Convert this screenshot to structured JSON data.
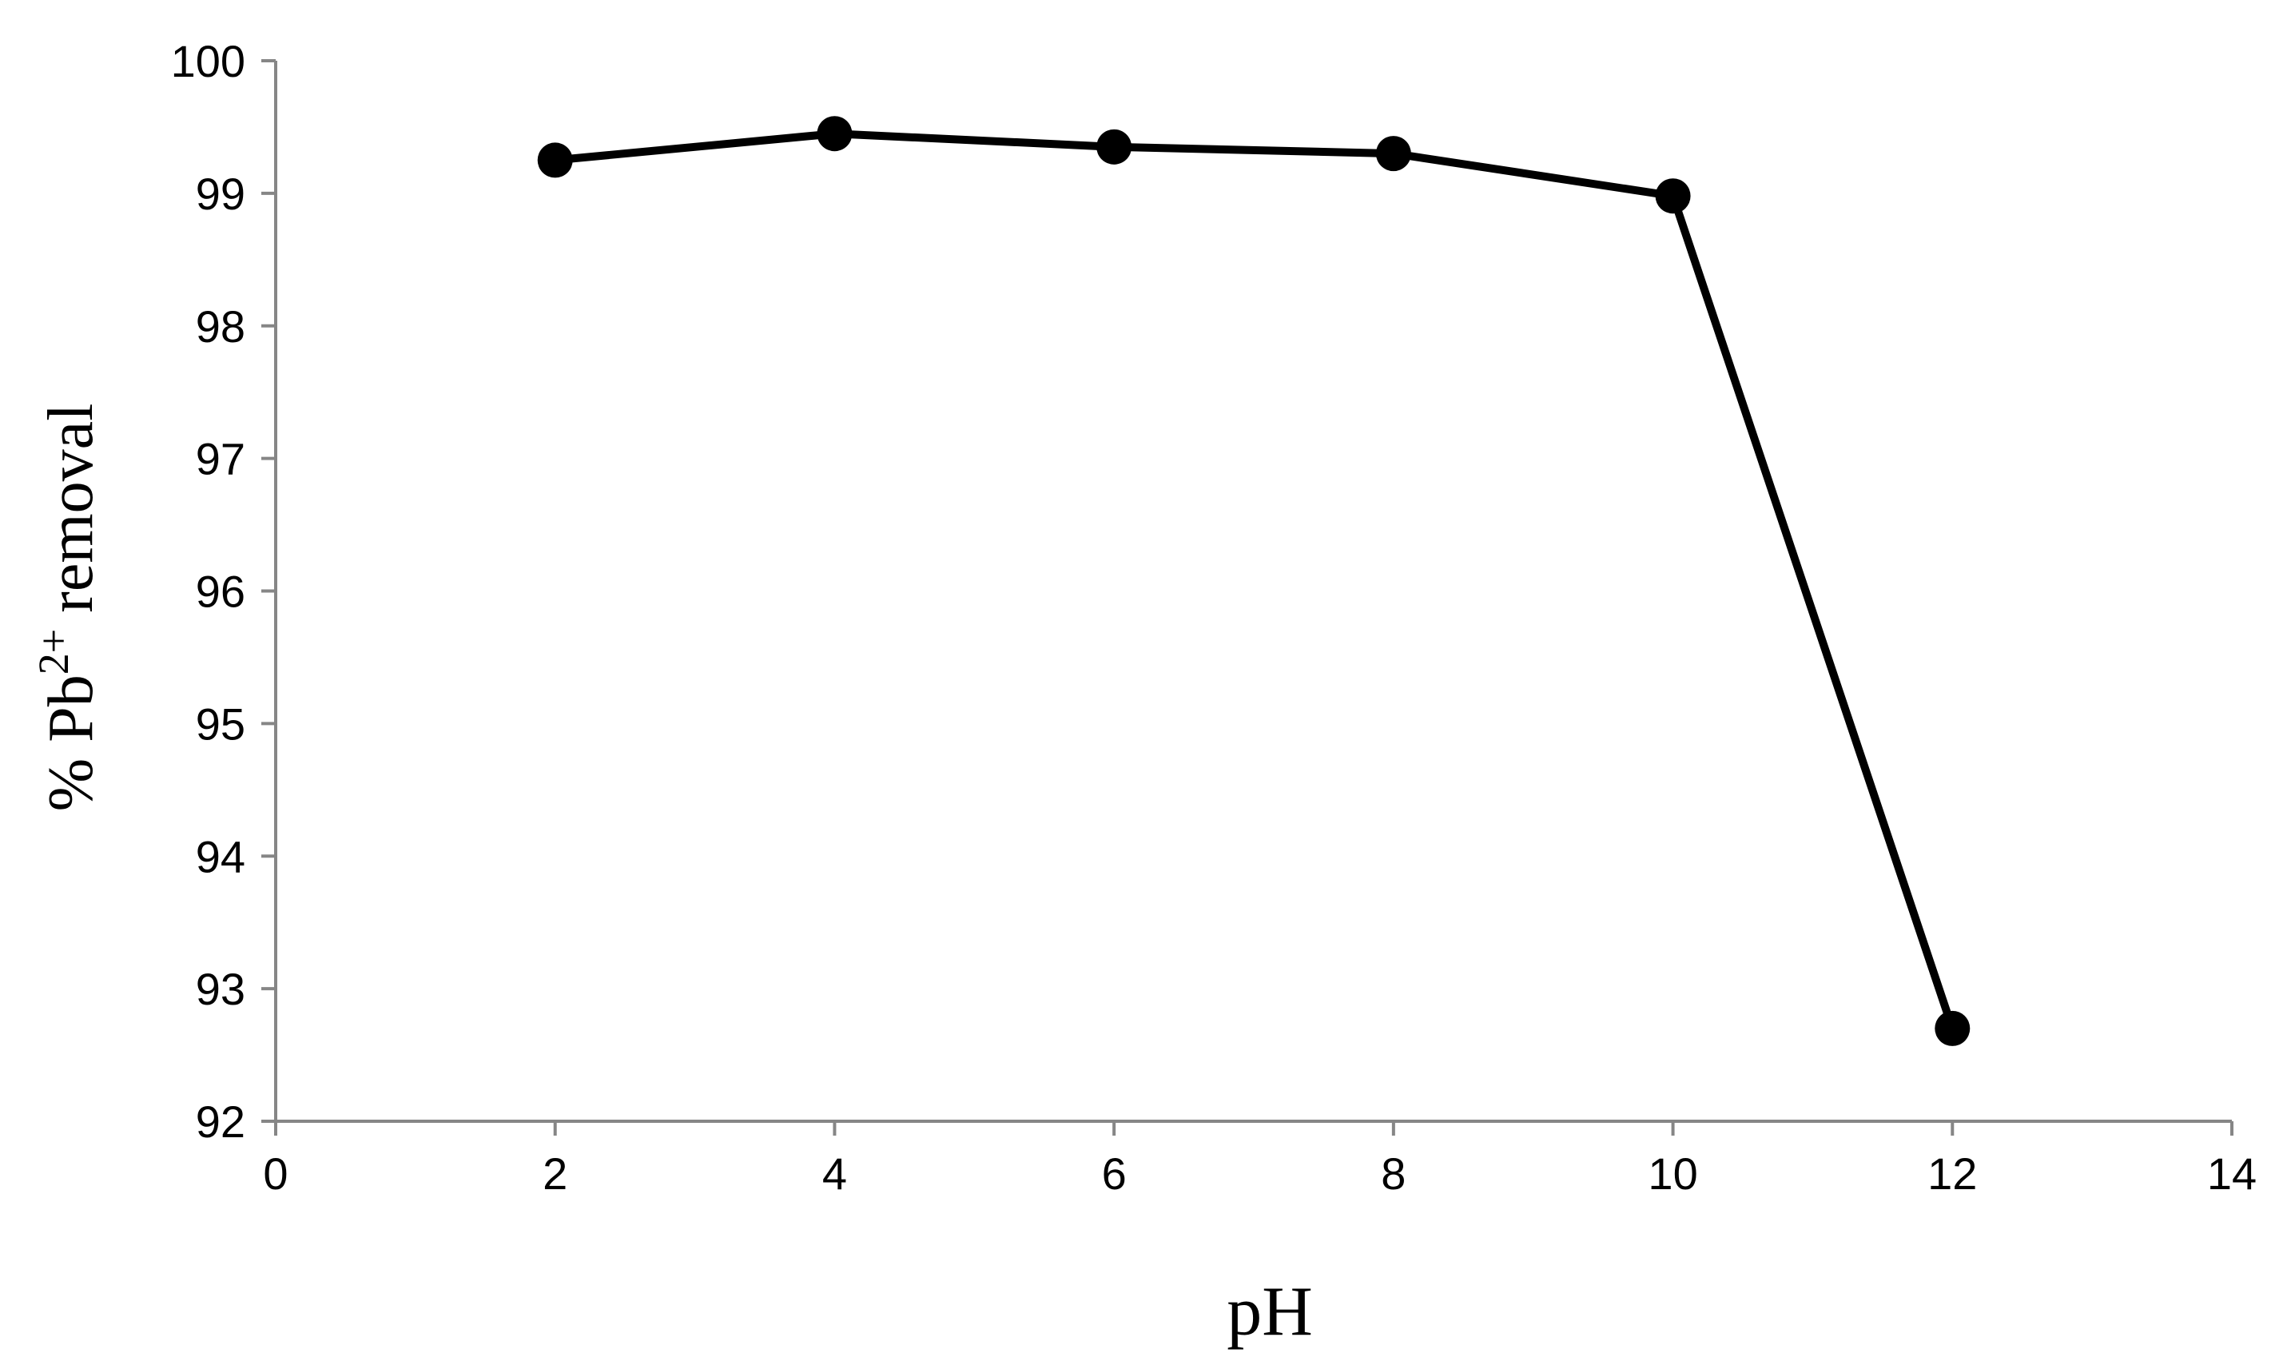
{
  "chart_data": {
    "type": "line",
    "title": "",
    "xlabel": "pH",
    "ylabel": {
      "prefix": "% Pb",
      "superscript": "2+",
      "suffix": " removal"
    },
    "xlim": [
      0,
      14
    ],
    "ylim": [
      92,
      100
    ],
    "xticks": [
      0,
      2,
      4,
      6,
      8,
      10,
      12,
      14
    ],
    "yticks": [
      92,
      93,
      94,
      95,
      96,
      97,
      98,
      99,
      100
    ],
    "grid": false,
    "legend": "none",
    "series": [
      {
        "x": [
          2,
          4,
          6,
          8,
          10,
          12
        ],
        "y": [
          99.25,
          99.45,
          99.35,
          99.3,
          98.98,
          92.7
        ],
        "color": "#000000",
        "marker": "circle"
      }
    ]
  }
}
